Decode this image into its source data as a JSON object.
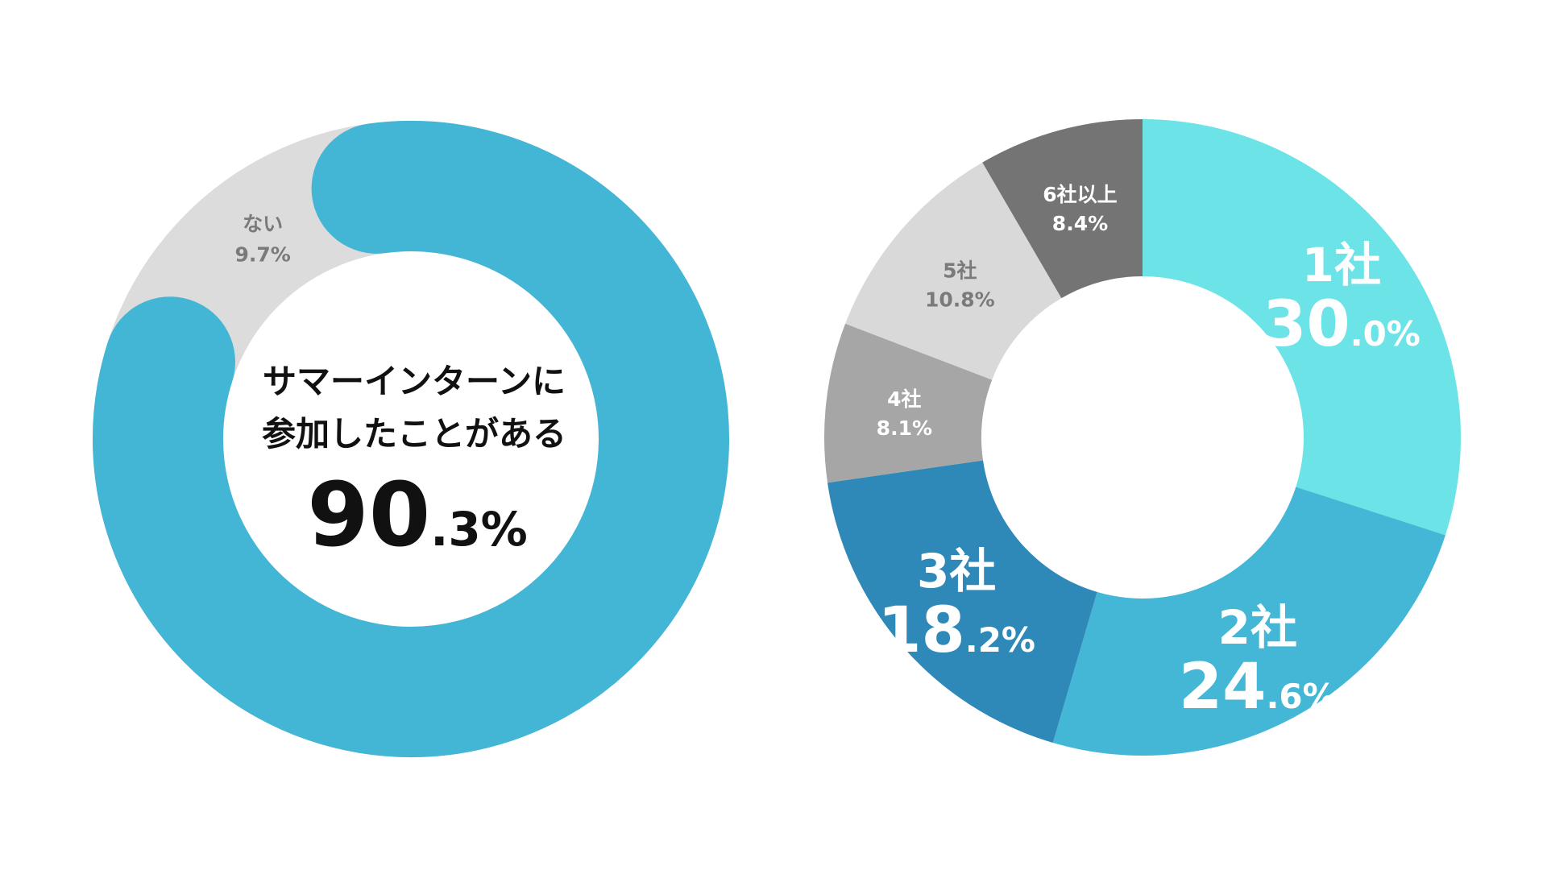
{
  "chart_data": [
    {
      "type": "pie",
      "slices": [
        {
          "label": "ない",
          "value": 9.7,
          "value_text": "9.7%",
          "color": "#dcdcdc",
          "text_color": "#7a7a7a"
        },
        {
          "label": "サマーインターンに参加したことがある",
          "value": 90.3,
          "value_int": "90",
          "value_dec": ".3%",
          "color": "#43b6d6"
        }
      ],
      "center_label": {
        "line1": "サマーインターンに",
        "line2": "参加したことがある",
        "value_int": "90",
        "value_dec": ".3%"
      }
    },
    {
      "type": "pie",
      "slices": [
        {
          "label": "1社",
          "value": 30.0,
          "value_int": "30",
          "value_dec": ".0%",
          "color": "#6ce3e6",
          "text_color": "#ffffff",
          "emphasis": true
        },
        {
          "label": "2社",
          "value": 24.6,
          "value_int": "24",
          "value_dec": ".6%",
          "color": "#44b6d6",
          "text_color": "#ffffff",
          "emphasis": true
        },
        {
          "label": "3社",
          "value": 18.2,
          "value_int": "18",
          "value_dec": ".2%",
          "color": "#2e88b8",
          "text_color": "#ffffff",
          "emphasis": true
        },
        {
          "label": "4社",
          "value": 8.1,
          "value_text": "8.1%",
          "color": "#a6a6a6",
          "text_color": "#ffffff",
          "emphasis": false
        },
        {
          "label": "5社",
          "value": 10.8,
          "value_text": "10.8%",
          "color": "#d9d9d9",
          "text_color": "#7a7a7a",
          "emphasis": false
        },
        {
          "label": "6社以上",
          "value": 8.4,
          "value_text": "8.4%",
          "color": "#747474",
          "text_color": "#ffffff",
          "emphasis": false
        }
      ]
    }
  ]
}
